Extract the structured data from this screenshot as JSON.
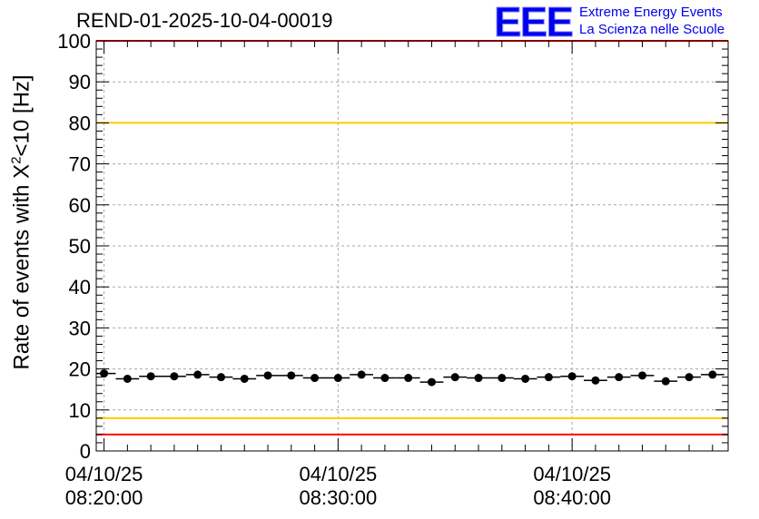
{
  "title": "REND-01-2025-10-04-00019",
  "logo": {
    "letters": "EEE",
    "line1": "Extreme Energy Events",
    "line2": "La Scienza nelle Scuole",
    "color": "#0000ee"
  },
  "chart_data": {
    "type": "scatter",
    "title": "REND-01-2025-10-04-00019",
    "ylabel_pre": "Rate of events with X",
    "ylabel_sup": "2",
    "ylabel_post": "<10 [Hz]",
    "xlabel": "",
    "ylim": [
      0,
      100
    ],
    "yticks": [
      0,
      10,
      20,
      30,
      40,
      50,
      60,
      70,
      80,
      90,
      100
    ],
    "xlim": [
      "04/10/25 08:19:40",
      "04/10/25 08:46:40"
    ],
    "xticks": [
      {
        "t": "04/10/25 08:20:00",
        "line1": "04/10/25",
        "line2": "08:20:00"
      },
      {
        "t": "04/10/25 08:30:00",
        "line1": "04/10/25",
        "line2": "08:30:00"
      },
      {
        "t": "04/10/25 08:40:00",
        "line1": "04/10/25",
        "line2": "08:40:00"
      }
    ],
    "grid": true,
    "bin_width_seconds": 60,
    "series": [
      {
        "color": "#000000",
        "x": [
          "08:20:00",
          "08:21:00",
          "08:22:00",
          "08:23:00",
          "08:24:00",
          "08:25:00",
          "08:26:00",
          "08:27:00",
          "08:28:00",
          "08:29:00",
          "08:30:00",
          "08:31:00",
          "08:32:00",
          "08:33:00",
          "08:34:00",
          "08:35:00",
          "08:36:00",
          "08:37:00",
          "08:38:00",
          "08:39:00",
          "08:40:00",
          "08:41:00",
          "08:42:00",
          "08:43:00",
          "08:44:00",
          "08:45:00",
          "08:46:00"
        ],
        "y": [
          18.9,
          17.6,
          18.2,
          18.2,
          18.6,
          18.0,
          17.6,
          18.4,
          18.4,
          17.8,
          17.8,
          18.6,
          17.8,
          17.8,
          16.8,
          18.0,
          17.8,
          17.8,
          17.6,
          18.0,
          18.2,
          17.2,
          18.0,
          18.4,
          17.0,
          18.0,
          18.6
        ]
      }
    ],
    "reference_lines": [
      {
        "y": 100,
        "color": "#ff0000"
      },
      {
        "y": 80,
        "color": "#ffcc00"
      },
      {
        "y": 8,
        "color": "#ffcc00"
      },
      {
        "y": 4,
        "color": "#ff0000"
      }
    ]
  }
}
